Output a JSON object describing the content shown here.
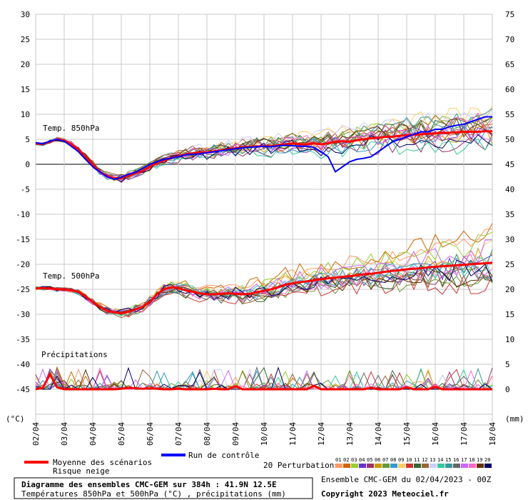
{
  "chart_data": {
    "type": "line",
    "title": "Diagramme des ensembles CMC-GEM sur 384h : 41.9N 12.5E",
    "subtitle": "Températures 850hPa et 500hPa (°C) , précipitations (mm)",
    "left_unit": "(°C)",
    "right_unit": "(mm)",
    "left_axis": {
      "ticks": [
        30,
        25,
        20,
        15,
        10,
        5,
        0,
        -5,
        -10,
        -15,
        -20,
        -25,
        -30,
        -35,
        -40,
        -45
      ]
    },
    "right_axis": {
      "ticks": [
        75,
        70,
        65,
        60,
        55,
        50,
        45,
        40,
        35,
        30,
        25,
        20,
        15,
        10,
        5,
        0
      ]
    },
    "x_labels": [
      "02/04",
      "03/04",
      "04/04",
      "05/04",
      "06/04",
      "07/04",
      "08/04",
      "09/04",
      "10/04",
      "11/04",
      "12/04",
      "13/04",
      "14/04",
      "15/04",
      "16/04",
      "17/04",
      "18/04"
    ],
    "panel_labels": {
      "t850": "Temp. 850hPa",
      "t500": "Temp. 500hPa",
      "precip": "Précipitations"
    },
    "grid": true,
    "series": [
      {
        "name": "Moyenne des scénarios",
        "color": "#ff0000",
        "t850": [
          4.2,
          4.0,
          4.5,
          5.0,
          4.8,
          4.0,
          3.0,
          1.5,
          0.0,
          -1.5,
          -2.3,
          -2.8,
          -2.8,
          -2.3,
          -1.8,
          -1.3,
          -0.5,
          0.3,
          0.8,
          1.2,
          1.6,
          2.0,
          2.2,
          2.4,
          2.4,
          2.6,
          2.8,
          3.0,
          3.2,
          3.4,
          3.5,
          3.6,
          3.6,
          3.6,
          3.8,
          4.0,
          4.2,
          4.0,
          4.0,
          4.2,
          4.0,
          4.2,
          4.5,
          4.6,
          4.5,
          4.8,
          5.0,
          5.2,
          5.3,
          5.5,
          5.5,
          5.7,
          5.8,
          5.9,
          6.0,
          6.1,
          6.2,
          6.3,
          6.3,
          6.4,
          6.5,
          6.5,
          6.5,
          6.6,
          6.6
        ],
        "t500": [
          -24.8,
          -24.8,
          -24.8,
          -25.0,
          -25.0,
          -25.2,
          -25.5,
          -26.5,
          -27.5,
          -28.5,
          -29.3,
          -29.6,
          -29.8,
          -29.5,
          -29.0,
          -28.5,
          -27.5,
          -26.0,
          -25.0,
          -24.6,
          -24.8,
          -25.2,
          -25.5,
          -25.8,
          -26.0,
          -26.0,
          -25.9,
          -25.8,
          -25.9,
          -26.0,
          -25.9,
          -25.6,
          -25.3,
          -25.0,
          -24.6,
          -24.1,
          -23.8,
          -23.6,
          -23.4,
          -23.2,
          -23.0,
          -22.8,
          -22.7,
          -22.5,
          -22.4,
          -22.2,
          -22.0,
          -21.9,
          -21.7,
          -21.5,
          -21.3,
          -21.2,
          -21.0,
          -20.9,
          -20.8,
          -20.6,
          -20.5,
          -20.4,
          -20.3,
          -20.2,
          -20.1,
          -20.0,
          -19.9,
          -19.8,
          -19.7
        ],
        "precip": [
          0,
          0.3,
          3.0,
          0.4,
          0,
          0,
          0,
          0,
          0,
          0,
          0,
          0,
          0.1,
          0.3,
          0.2,
          0.1,
          0.2,
          0.1,
          0,
          0,
          0.1,
          0,
          0,
          0,
          0,
          0.1,
          0,
          0,
          0.6,
          0,
          0,
          0,
          0,
          0,
          0,
          0,
          0,
          0,
          0,
          0.7,
          0,
          0,
          0,
          0,
          0,
          0,
          0,
          0.3,
          0,
          0,
          0,
          0,
          0.4,
          0,
          0,
          0,
          0.5,
          0,
          0,
          0,
          0,
          0,
          0,
          0,
          0
        ]
      },
      {
        "name": "Run de contrôle",
        "color": "#0000ff",
        "t850": [
          4.3,
          4.1,
          4.6,
          5.0,
          4.6,
          3.6,
          2.5,
          1.0,
          -0.5,
          -1.5,
          -2.5,
          -3.0,
          -2.6,
          -2.0,
          -1.6,
          -0.8,
          0.0,
          0.5,
          1.0,
          1.2,
          1.5,
          1.9,
          2.0,
          2.1,
          2.3,
          2.5,
          2.7,
          2.9,
          3.1,
          3.3,
          3.4,
          3.5,
          3.6,
          3.5,
          3.7,
          3.8,
          3.7,
          3.6,
          3.6,
          3.4,
          2.5,
          1.5,
          -1.5,
          -0.5,
          0.5,
          1.0,
          1.2,
          1.5,
          2.5,
          3.5,
          4.5,
          5.0,
          5.5,
          6.0,
          6.5,
          6.5,
          7.0,
          7.0,
          7.5,
          7.8,
          8.0,
          8.5,
          9.0,
          9.5,
          9.5
        ],
        "t500": [],
        "precip": []
      }
    ],
    "legend": {
      "mean": "Moyenne des scénarios",
      "snow": "Risque neige",
      "control": "Run de contrôle",
      "perturbations": "20 Perturbations",
      "perturbation_ids": [
        "01",
        "02",
        "03",
        "04",
        "05",
        "06",
        "07",
        "08",
        "09",
        "10",
        "11",
        "12",
        "13",
        "14",
        "15",
        "16",
        "17",
        "18",
        "19",
        "20"
      ],
      "perturbation_colors": [
        "#ff9966",
        "#cc6600",
        "#99cc33",
        "#6633cc",
        "#993366",
        "#cc9900",
        "#669933",
        "#3399cc",
        "#ffcc66",
        "#cc3333",
        "#336633",
        "#996633",
        "#ccccff",
        "#33cc99",
        "#339999",
        "#666666",
        "#cc66ff",
        "#ff66cc",
        "#663300",
        "#000066"
      ]
    },
    "footer": {
      "run": "Ensemble CMC-GEM du 02/04/2023 - 00Z",
      "copyright": "Copyright 2023 Meteociel.fr"
    }
  }
}
